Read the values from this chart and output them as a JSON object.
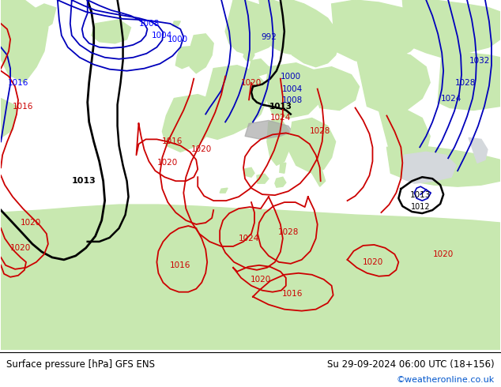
{
  "title_left": "Surface pressure [hPa] GFS ENS",
  "title_right": "Su 29-09-2024 06:00 UTC (18+156)",
  "credit": "©weatheronline.co.uk",
  "ocean_color": "#d4d8dc",
  "land_color": "#c8e8b0",
  "mountain_color": "#a8a8a8",
  "text_color_black": "#000000",
  "text_color_blue": "#0000bb",
  "text_color_red": "#cc0000",
  "text_color_credit": "#0055cc",
  "figsize": [
    6.34,
    4.9
  ],
  "dpi": 100
}
